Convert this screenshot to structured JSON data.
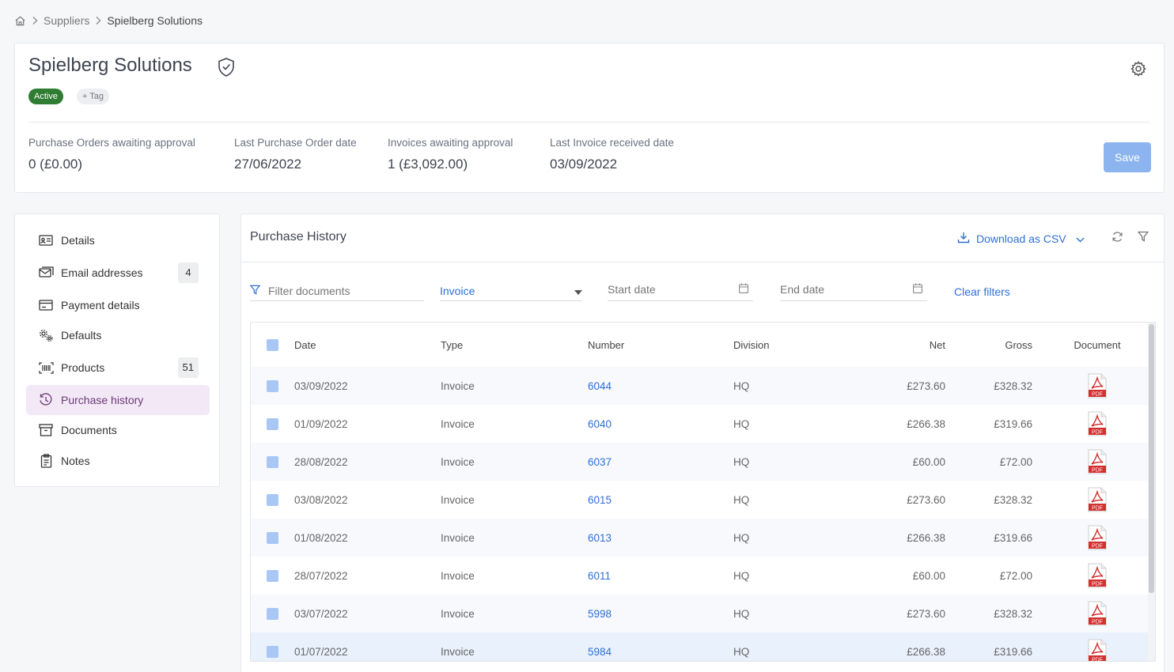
{
  "breadcrumb": {
    "items": [
      "Suppliers",
      "Spielberg Solutions"
    ]
  },
  "supplier": {
    "name": "Spielberg Solutions",
    "status": "Active",
    "tag_label": "+ Tag"
  },
  "stats": [
    {
      "label": "Purchase Orders awaiting approval",
      "value": "0 (£0.00)"
    },
    {
      "label": "Last Purchase Order date",
      "value": "27/06/2022"
    },
    {
      "label": "Invoices awaiting approval",
      "value": "1 (£3,092.00)"
    },
    {
      "label": "Last Invoice received date",
      "value": "03/09/2022"
    }
  ],
  "save_label": "Save",
  "sidebar": {
    "items": [
      {
        "label": "Details",
        "icon": "id-card-icon"
      },
      {
        "label": "Email addresses",
        "icon": "email-icon",
        "count": "4"
      },
      {
        "label": "Payment details",
        "icon": "payment-icon"
      },
      {
        "label": "Defaults",
        "icon": "gears-icon"
      },
      {
        "label": "Products",
        "icon": "barcode-icon",
        "count": "51"
      },
      {
        "label": "Purchase history",
        "icon": "history-icon",
        "active": true
      },
      {
        "label": "Documents",
        "icon": "archive-icon"
      },
      {
        "label": "Notes",
        "icon": "clipboard-icon"
      }
    ]
  },
  "history": {
    "title": "Purchase History",
    "download_label": "Download as CSV",
    "filter_placeholder": "Filter documents",
    "type_value": "Invoice",
    "start_date_placeholder": "Start date",
    "end_date_placeholder": "End date",
    "clear_filters": "Clear filters",
    "columns": [
      "Date",
      "Type",
      "Number",
      "Division",
      "Net",
      "Gross",
      "Document"
    ],
    "rows": [
      {
        "date": "03/09/2022",
        "type": "Invoice",
        "number": "6044",
        "division": "HQ",
        "net": "£273.60",
        "gross": "£328.32"
      },
      {
        "date": "01/09/2022",
        "type": "Invoice",
        "number": "6040",
        "division": "HQ",
        "net": "£266.38",
        "gross": "£319.66"
      },
      {
        "date": "28/08/2022",
        "type": "Invoice",
        "number": "6037",
        "division": "HQ",
        "net": "£60.00",
        "gross": "£72.00"
      },
      {
        "date": "03/08/2022",
        "type": "Invoice",
        "number": "6015",
        "division": "HQ",
        "net": "£273.60",
        "gross": "£328.32"
      },
      {
        "date": "01/08/2022",
        "type": "Invoice",
        "number": "6013",
        "division": "HQ",
        "net": "£266.38",
        "gross": "£319.66"
      },
      {
        "date": "28/07/2022",
        "type": "Invoice",
        "number": "6011",
        "division": "HQ",
        "net": "£60.00",
        "gross": "£72.00"
      },
      {
        "date": "03/07/2022",
        "type": "Invoice",
        "number": "5998",
        "division": "HQ",
        "net": "£273.60",
        "gross": "£328.32"
      },
      {
        "date": "01/07/2022",
        "type": "Invoice",
        "number": "5984",
        "division": "HQ",
        "net": "£266.38",
        "gross": "£319.66"
      }
    ],
    "pdf_label": "PDF"
  },
  "colors": {
    "accent": "#2f6fd6",
    "active_badge": "#2e7d32",
    "active_nav": "#f3e8f6",
    "pdf_red": "#d32f2f"
  }
}
